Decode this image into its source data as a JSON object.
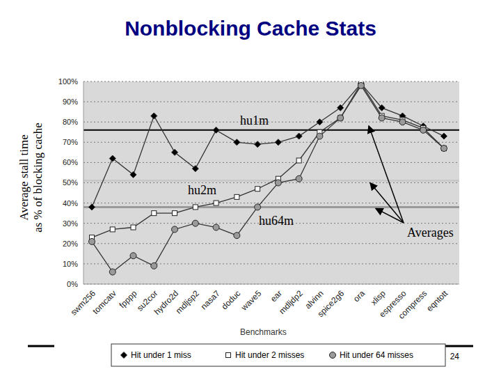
{
  "title": "Nonblocking Cache Stats",
  "page_number": "24",
  "chart_data": {
    "type": "line",
    "x_label": "Benchmarks",
    "y_label": [
      "Average stall time",
      "as % of blocking cache"
    ],
    "categories": [
      "swm256",
      "tomcatv",
      "fpppp",
      "su2cor",
      "hydro2d",
      "mdljsp2",
      "nasa7",
      "doduc",
      "wave5",
      "ear",
      "mdljdp2",
      "alvinn",
      "spice2g6",
      "ora",
      "xlisp",
      "espresso",
      "compress",
      "eqntott"
    ],
    "series": [
      {
        "name": "Hit under 1 miss",
        "color": "#333333",
        "marker": "diamond",
        "values": [
          38,
          62,
          54,
          83,
          65,
          57,
          76,
          70,
          69,
          70,
          73,
          80,
          87,
          99,
          87,
          83,
          78,
          73
        ]
      },
      {
        "name": "Hit under 2 misses",
        "color": "#333333",
        "marker": "square",
        "values": [
          23,
          27,
          28,
          35,
          35,
          38,
          40,
          43,
          47,
          52,
          61,
          75,
          82,
          99,
          83,
          81,
          77,
          67
        ]
      },
      {
        "name": "Hit under 64 misses",
        "color": "#333333",
        "marker": "circle",
        "values": [
          21,
          6,
          14,
          9,
          27,
          30,
          28,
          24,
          38,
          50,
          52,
          73,
          82,
          98,
          82,
          80,
          76,
          67
        ]
      }
    ],
    "averages": [
      {
        "name": "hu1m",
        "value": 76,
        "color": "#000000"
      },
      {
        "name": "hu2m",
        "value": 51,
        "color": "#c8c8c8"
      },
      {
        "name": "hu64m",
        "value": 38,
        "color": "#9a9a9a"
      }
    ],
    "averages_label": "Averages",
    "ylim": [
      0,
      100
    ],
    "yticks": [
      {
        "value": 0,
        "label": "0%"
      },
      {
        "value": 10,
        "label": "10%"
      },
      {
        "value": 20,
        "label": "20%"
      },
      {
        "value": 30,
        "label": "30%"
      },
      {
        "value": 40,
        "label": "40%"
      },
      {
        "value": 50,
        "label": "50%"
      },
      {
        "value": 60,
        "label": "60%"
      },
      {
        "value": 70,
        "label": "70%"
      },
      {
        "value": 80,
        "label": "80%"
      },
      {
        "value": 90,
        "label": "90%"
      },
      {
        "value": 100,
        "label": "100%"
      }
    ],
    "grid": true,
    "legend": "bottom"
  }
}
